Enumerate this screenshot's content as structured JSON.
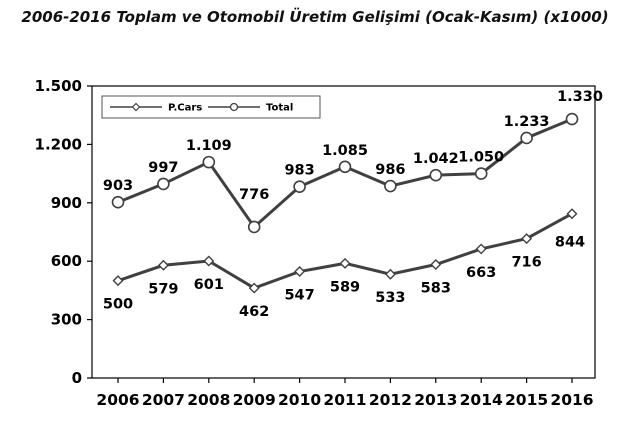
{
  "chart_data": {
    "type": "line",
    "title": "2006-2016 Toplam ve Otomobil Üretim Gelişimi (Ocak-Kasım) (x1000)",
    "xlabel": "",
    "ylabel": "",
    "categories": [
      "2006",
      "2007",
      "2008",
      "2009",
      "2010",
      "2011",
      "2012",
      "2013",
      "2014",
      "2015",
      "2016"
    ],
    "ylim": [
      0,
      1500
    ],
    "yticks": [
      0,
      300,
      600,
      900,
      1200,
      1500
    ],
    "ytick_labels": [
      "0",
      "300",
      "600",
      "900",
      "1.200",
      "1.500"
    ],
    "legend_position": "top-left",
    "grid": false,
    "series": [
      {
        "name": "P.Cars",
        "marker": "diamond",
        "values": [
          500,
          579,
          601,
          462,
          547,
          589,
          533,
          583,
          663,
          716,
          844
        ],
        "labels": [
          "500",
          "579",
          "601",
          "462",
          "547",
          "589",
          "533",
          "583",
          "663",
          "716",
          "844"
        ]
      },
      {
        "name": "Total",
        "marker": "circle",
        "values": [
          903,
          997,
          1109,
          776,
          983,
          1085,
          986,
          1042,
          1050,
          1233,
          1330
        ],
        "labels": [
          "903",
          "997",
          "1.109",
          "776",
          "983",
          "1.085",
          "986",
          "1.042",
          "1.050",
          "1.233",
          "1.330"
        ]
      }
    ],
    "colors": {
      "line": "#404040",
      "marker_fill": "#ffffff",
      "axis": "#000000"
    }
  }
}
